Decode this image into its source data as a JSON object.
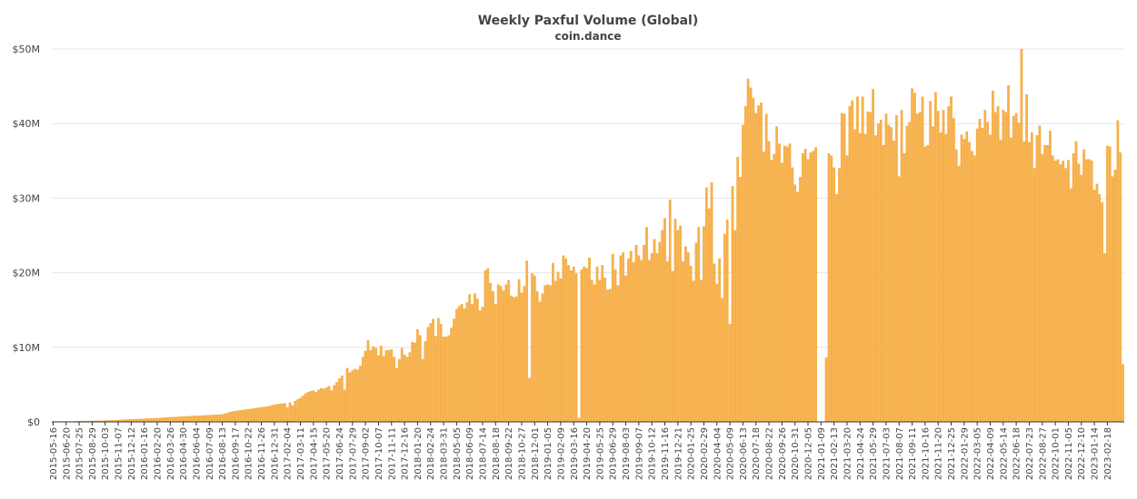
{
  "chart_data": {
    "type": "bar",
    "title": "Weekly Paxful Volume (Global)",
    "subtitle": "coin.dance",
    "xlabel": "",
    "ylabel": "",
    "ylim": [
      0,
      50000000
    ],
    "y_ticks": [
      {
        "value": 0,
        "label": "$0"
      },
      {
        "value": 10000000,
        "label": "$10M"
      },
      {
        "value": 20000000,
        "label": "$20M"
      },
      {
        "value": 30000000,
        "label": "$30M"
      },
      {
        "value": 40000000,
        "label": "$40M"
      },
      {
        "value": 50000000,
        "label": "$50M"
      }
    ],
    "x_tick_labels": [
      "2015-05-16",
      "2015-06-20",
      "2015-07-25",
      "2015-08-29",
      "2015-10-03",
      "2015-11-07",
      "2015-12-12",
      "2016-01-16",
      "2016-02-20",
      "2016-03-26",
      "2016-04-30",
      "2016-06-04",
      "2016-07-09",
      "2016-08-13",
      "2016-09-17",
      "2016-10-22",
      "2016-11-26",
      "2016-12-31",
      "2017-02-04",
      "2017-03-11",
      "2017-04-15",
      "2017-05-20",
      "2017-06-24",
      "2017-07-29",
      "2017-09-02",
      "2017-10-07",
      "2017-11-11",
      "2017-12-16",
      "2018-01-20",
      "2018-02-24",
      "2018-03-31",
      "2018-05-05",
      "2018-06-09",
      "2018-07-14",
      "2018-08-18",
      "2018-09-22",
      "2018-10-27",
      "2018-12-01",
      "2019-01-05",
      "2019-02-09",
      "2019-03-16",
      "2019-04-20",
      "2019-05-25",
      "2019-06-29",
      "2019-08-03",
      "2019-09-07",
      "2019-10-12",
      "2019-11-16",
      "2019-12-21",
      "2020-01-25",
      "2020-02-29",
      "2020-04-04",
      "2020-05-09",
      "2020-06-13",
      "2020-07-18",
      "2020-08-22",
      "2020-09-26",
      "2020-10-31",
      "2020-12-05",
      "2021-01-09",
      "2021-02-13",
      "2021-03-20",
      "2021-04-24",
      "2021-05-29",
      "2021-07-03",
      "2021-08-07",
      "2021-09-11",
      "2021-10-16",
      "2021-11-20",
      "2021-12-25",
      "2022-01-29",
      "2022-03-05",
      "2022-04-09",
      "2022-05-14",
      "2022-06-18",
      "2022-07-23",
      "2022-08-27",
      "2022-10-01",
      "2022-11-05",
      "2022-12-10",
      "2023-01-14",
      "2023-02-18"
    ],
    "values_millions": [
      0.05,
      0.05,
      0.05,
      0.05,
      0.05,
      0.05,
      0.05,
      0.06,
      0.07,
      0.08,
      0.09,
      0.1,
      0.11,
      0.12,
      0.12,
      0.13,
      0.14,
      0.14,
      0.15,
      0.16,
      0.18,
      0.2,
      0.2,
      0.21,
      0.22,
      0.24,
      0.26,
      0.28,
      0.3,
      0.32,
      0.34,
      0.36,
      0.37,
      0.39,
      0.4,
      0.42,
      0.45,
      0.47,
      0.48,
      0.5,
      0.5,
      0.52,
      0.55,
      0.57,
      0.6,
      0.62,
      0.64,
      0.66,
      0.68,
      0.7,
      0.72,
      0.73,
      0.75,
      0.77,
      0.8,
      0.82,
      0.83,
      0.85,
      0.86,
      0.88,
      0.9,
      0.92,
      0.93,
      0.95,
      0.97,
      1.0,
      1.1,
      1.2,
      1.3,
      1.4,
      1.45,
      1.5,
      1.55,
      1.6,
      1.65,
      1.7,
      1.75,
      1.8,
      1.85,
      1.9,
      1.95,
      2.0,
      2.05,
      2.1,
      2.2,
      2.3,
      2.35,
      2.4,
      2.45,
      2.5,
      1.9,
      2.6,
      2.2,
      2.8,
      3.0,
      3.2,
      3.5,
      3.8,
      4.0,
      4.1,
      4.2,
      4.0,
      4.3,
      4.5,
      4.4,
      4.6,
      4.8,
      4.2,
      4.9,
      5.3,
      5.8,
      6.2,
      4.3,
      7.2,
      6.6,
      6.9,
      7.1,
      7.0,
      7.5,
      8.7,
      9.5,
      10.9,
      9.6,
      10.1,
      9.9,
      8.9,
      10.2,
      8.8,
      9.6,
      9.6,
      9.7,
      8.7,
      7.2,
      8.4,
      9.9,
      9.0,
      8.7,
      9.3,
      10.7,
      10.6,
      12.4,
      11.6,
      8.4,
      10.8,
      12.7,
      13.2,
      13.8,
      11.5,
      13.9,
      13.1,
      11.4,
      11.4,
      11.6,
      12.6,
      13.8,
      15.1,
      15.5,
      15.8,
      15.2,
      16.0,
      17.1,
      15.8,
      17.2,
      16.5,
      14.9,
      15.4,
      20.3,
      20.6,
      18.6,
      17.5,
      15.8,
      18.4,
      18.2,
      17.6,
      18.4,
      19.0,
      16.9,
      16.7,
      16.8,
      19.1,
      17.3,
      18.2,
      21.6,
      5.9,
      19.9,
      19.6,
      17.5,
      16.1,
      17.2,
      18.3,
      18.4,
      18.3,
      21.3,
      18.9,
      20.1,
      19.2,
      22.3,
      21.9,
      21.0,
      20.3,
      20.8,
      19.9,
      0.5,
      20.4,
      20.8,
      20.6,
      22.0,
      19.0,
      18.4,
      20.8,
      19.0,
      21.0,
      19.3,
      17.7,
      17.8,
      22.5,
      20.4,
      18.3,
      22.3,
      22.7,
      19.6,
      21.9,
      22.9,
      21.4,
      23.7,
      22.3,
      21.7,
      23.7,
      26.1,
      21.7,
      22.6,
      24.5,
      22.6,
      24.1,
      25.7,
      27.3,
      21.5,
      29.8,
      20.2,
      27.2,
      25.7,
      26.3,
      21.5,
      23.5,
      22.7,
      20.9,
      18.9,
      24.0,
      26.1,
      19.0,
      26.2,
      31.4,
      28.6,
      32.1,
      21.2,
      18.5,
      21.9,
      16.6,
      25.2,
      27.1,
      13.1,
      31.6,
      25.7,
      35.5,
      32.8,
      39.8,
      42.3,
      46.0,
      44.8,
      43.4,
      41.4,
      42.4,
      42.8,
      36.2,
      41.3,
      37.6,
      35.1,
      35.9,
      39.6,
      37.3,
      34.7,
      37.0,
      36.9,
      37.3,
      34.1,
      31.8,
      30.8,
      32.8,
      36.0,
      36.6,
      35.2,
      36.1,
      36.3,
      36.8,
      0,
      0,
      0,
      8.6,
      36.0,
      35.7,
      34.1,
      30.5,
      34.0,
      41.4,
      41.3,
      35.7,
      42.3,
      43.1,
      39.2,
      43.6,
      38.7,
      43.6,
      38.6,
      41.6,
      41.5,
      44.6,
      38.4,
      40.0,
      40.5,
      37.1,
      41.3,
      39.8,
      39.5,
      37.7,
      41.1,
      32.9,
      41.8,
      36.0,
      39.7,
      40.2,
      44.7,
      44.1,
      41.3,
      41.5,
      43.6,
      36.9,
      37.1,
      43.0,
      39.6,
      44.2,
      41.7,
      38.8,
      41.8,
      38.6,
      42.3,
      43.6,
      40.7,
      36.5,
      34.3,
      38.5,
      37.9,
      38.9,
      37.5,
      36.3,
      35.7,
      39.3,
      40.6,
      39.4,
      41.8,
      40.2,
      38.5,
      44.4,
      41.5,
      42.3,
      37.8,
      41.8,
      41.5,
      45.1,
      38.1,
      41.0,
      41.4,
      40.1,
      50.0,
      37.6,
      43.9,
      37.5,
      38.8,
      34.0,
      38.4,
      39.7,
      35.9,
      37.1,
      37.1,
      39.0,
      35.7,
      35.0,
      35.2,
      34.5,
      35.0,
      34.0,
      35.1,
      31.3,
      36.0,
      37.6,
      34.6,
      33.1,
      36.5,
      35.2,
      35.2,
      35.0,
      31.1,
      31.9,
      30.5,
      29.4,
      22.6,
      37.0,
      36.9,
      32.9,
      33.8,
      40.4,
      36.1,
      7.7
    ]
  }
}
